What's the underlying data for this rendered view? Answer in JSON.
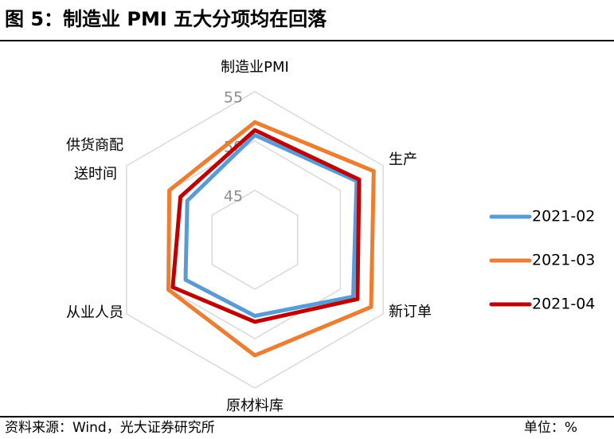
{
  "figure": {
    "title": "图 5：制造业 PMI 五大分项均在回落",
    "source": "资料来源：Wind，光大证券研究所",
    "unit": "单位：%"
  },
  "chart_data": {
    "type": "radar",
    "categories": [
      "制造业PMI",
      "生产",
      "新订单",
      "原材料库",
      "从业人员",
      "供货商配送时间"
    ],
    "category_display": [
      [
        "制造业PMI"
      ],
      [
        "生产"
      ],
      [
        "新订单"
      ],
      [
        "原材料库"
      ],
      [
        "从业人员"
      ],
      [
        "供货商配",
        "送时间"
      ]
    ],
    "rmin": 40,
    "rmax": 55,
    "ticks": [
      45,
      50,
      55
    ],
    "grid": true,
    "legend_position": "right",
    "series": [
      {
        "name": "2021-02",
        "color": "#5B9BD5",
        "values": [
          50.6,
          51.9,
          51.5,
          47.7,
          48.1,
          47.9
        ]
      },
      {
        "name": "2021-03",
        "color": "#ED7D31",
        "values": [
          51.9,
          53.9,
          53.6,
          51.7,
          50.1,
          50.0
        ]
      },
      {
        "name": "2021-04",
        "color": "#C00000",
        "values": [
          51.1,
          52.2,
          52.0,
          48.3,
          49.6,
          48.7
        ]
      }
    ]
  }
}
